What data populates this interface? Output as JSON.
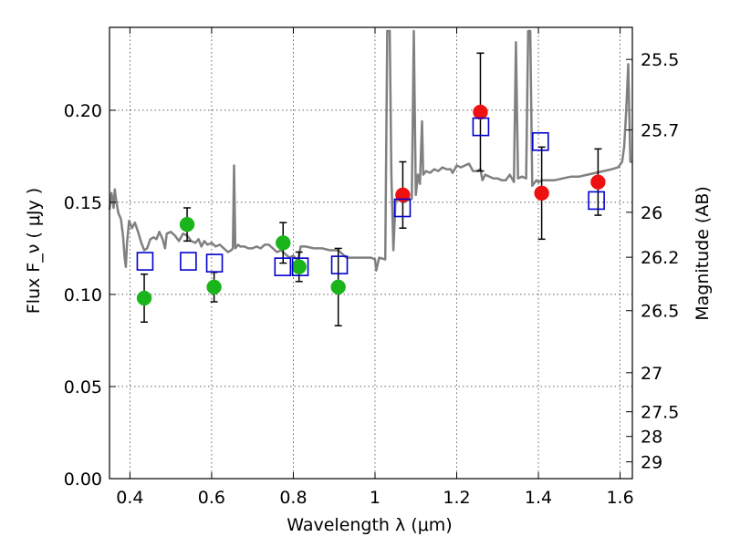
{
  "chart_data": {
    "type": "scatter",
    "xlabel": "Wavelength  λ (μm)",
    "ylabel": "Flux  F_ν  ( μJy )",
    "ylabel_right": "Magnitude (AB)",
    "xlim": [
      0.35,
      1.63
    ],
    "ylim": [
      0.0,
      0.245
    ],
    "grid": true,
    "x_ticks": [
      0.4,
      0.6,
      0.8,
      1.0,
      1.2,
      1.4,
      1.6
    ],
    "x_tick_labels": [
      "0.4",
      "0.6",
      "0.8",
      "1",
      "1.2",
      "1.4",
      "1.6"
    ],
    "y_ticks": [
      0.0,
      0.05,
      0.1,
      0.15,
      0.2
    ],
    "y_tick_labels": [
      "0.00",
      "0.05",
      "0.10",
      "0.15",
      "0.20"
    ],
    "right_ticks": [
      {
        "flux": 0.2276,
        "label": "25.5"
      },
      {
        "flux": 0.1893,
        "label": "25.7"
      },
      {
        "flux": 0.1446,
        "label": "26"
      },
      {
        "flux": 0.1202,
        "label": "26.2"
      },
      {
        "flux": 0.0912,
        "label": "26.5"
      },
      {
        "flux": 0.0575,
        "label": "27"
      },
      {
        "flux": 0.0363,
        "label": "27.5"
      },
      {
        "flux": 0.0229,
        "label": "28"
      },
      {
        "flux": 0.0091,
        "label": "29"
      }
    ],
    "series": [
      {
        "name": "optical photometry",
        "marker": "circle",
        "color": "#1ab51a",
        "points": [
          {
            "x": 0.435,
            "y": 0.098,
            "err": 0.013
          },
          {
            "x": 0.54,
            "y": 0.138,
            "err": 0.009
          },
          {
            "x": 0.606,
            "y": 0.104,
            "err": 0.008
          },
          {
            "x": 0.775,
            "y": 0.128,
            "err": 0.011
          },
          {
            "x": 0.814,
            "y": 0.115,
            "err": 0.008
          },
          {
            "x": 0.91,
            "y": 0.104,
            "err": 0.021
          }
        ]
      },
      {
        "name": "near-IR photometry",
        "marker": "circle",
        "color": "#ee1111",
        "points": [
          {
            "x": 1.068,
            "y": 0.154,
            "err": 0.018
          },
          {
            "x": 1.258,
            "y": 0.199,
            "err": 0.032
          },
          {
            "x": 1.408,
            "y": 0.155,
            "err": 0.025
          },
          {
            "x": 1.546,
            "y": 0.161,
            "err": 0.018
          }
        ]
      },
      {
        "name": "model photometry",
        "marker": "open-square",
        "color": "#0000cc",
        "points": [
          {
            "x": 0.437,
            "y": 0.118
          },
          {
            "x": 0.543,
            "y": 0.118
          },
          {
            "x": 0.607,
            "y": 0.117
          },
          {
            "x": 0.774,
            "y": 0.115
          },
          {
            "x": 0.817,
            "y": 0.115
          },
          {
            "x": 0.913,
            "y": 0.116
          },
          {
            "x": 1.067,
            "y": 0.147
          },
          {
            "x": 1.259,
            "y": 0.191
          },
          {
            "x": 1.405,
            "y": 0.183
          },
          {
            "x": 1.542,
            "y": 0.151
          }
        ]
      },
      {
        "name": "model spectrum",
        "type": "line",
        "color": "#808080",
        "points": [
          [
            0.35,
            0.146
          ],
          [
            0.355,
            0.155
          ],
          [
            0.36,
            0.147
          ],
          [
            0.363,
            0.157
          ],
          [
            0.367,
            0.15
          ],
          [
            0.372,
            0.144
          ],
          [
            0.378,
            0.141
          ],
          [
            0.383,
            0.132
          ],
          [
            0.387,
            0.12
          ],
          [
            0.39,
            0.115
          ],
          [
            0.393,
            0.128
          ],
          [
            0.398,
            0.14
          ],
          [
            0.405,
            0.136
          ],
          [
            0.412,
            0.139
          ],
          [
            0.42,
            0.134
          ],
          [
            0.428,
            0.128
          ],
          [
            0.435,
            0.124
          ],
          [
            0.442,
            0.125
          ],
          [
            0.45,
            0.13
          ],
          [
            0.458,
            0.131
          ],
          [
            0.465,
            0.13
          ],
          [
            0.472,
            0.134
          ],
          [
            0.48,
            0.13
          ],
          [
            0.486,
            0.125
          ],
          [
            0.49,
            0.133
          ],
          [
            0.5,
            0.134
          ],
          [
            0.51,
            0.132
          ],
          [
            0.52,
            0.129
          ],
          [
            0.53,
            0.133
          ],
          [
            0.54,
            0.132
          ],
          [
            0.55,
            0.129
          ],
          [
            0.56,
            0.128
          ],
          [
            0.568,
            0.13
          ],
          [
            0.575,
            0.126
          ],
          [
            0.582,
            0.129
          ],
          [
            0.59,
            0.127
          ],
          [
            0.6,
            0.128
          ],
          [
            0.61,
            0.126
          ],
          [
            0.62,
            0.127
          ],
          [
            0.63,
            0.125
          ],
          [
            0.64,
            0.123
          ],
          [
            0.648,
            0.124
          ],
          [
            0.652,
            0.125
          ],
          [
            0.655,
            0.17
          ],
          [
            0.658,
            0.125
          ],
          [
            0.665,
            0.127
          ],
          [
            0.67,
            0.126
          ],
          [
            0.68,
            0.126
          ],
          [
            0.69,
            0.125
          ],
          [
            0.7,
            0.125
          ],
          [
            0.71,
            0.126
          ],
          [
            0.72,
            0.125
          ],
          [
            0.73,
            0.127
          ],
          [
            0.74,
            0.127
          ],
          [
            0.75,
            0.125
          ],
          [
            0.76,
            0.123
          ],
          [
            0.77,
            0.124
          ],
          [
            0.78,
            0.122
          ],
          [
            0.79,
            0.12
          ],
          [
            0.8,
            0.121
          ],
          [
            0.808,
            0.119
          ],
          [
            0.813,
            0.12
          ],
          [
            0.818,
            0.126
          ],
          [
            0.83,
            0.126
          ],
          [
            0.85,
            0.125
          ],
          [
            0.87,
            0.125
          ],
          [
            0.89,
            0.124
          ],
          [
            0.91,
            0.124
          ],
          [
            0.93,
            0.12
          ],
          [
            0.95,
            0.12
          ],
          [
            0.97,
            0.12
          ],
          [
            0.99,
            0.12
          ],
          [
            1.0,
            0.119
          ],
          [
            1.003,
            0.113
          ],
          [
            1.01,
            0.12
          ],
          [
            1.025,
            0.119
          ],
          [
            1.03,
            0.243
          ],
          [
            1.036,
            0.243
          ],
          [
            1.04,
            0.165
          ],
          [
            1.045,
            0.124
          ],
          [
            1.05,
            0.15
          ],
          [
            1.055,
            0.152
          ],
          [
            1.06,
            0.152
          ],
          [
            1.07,
            0.15
          ],
          [
            1.08,
            0.151
          ],
          [
            1.09,
            0.152
          ],
          [
            1.095,
            0.243
          ],
          [
            1.1,
            0.154
          ],
          [
            1.105,
            0.165
          ],
          [
            1.11,
            0.16
          ],
          [
            1.115,
            0.194
          ],
          [
            1.118,
            0.165
          ],
          [
            1.125,
            0.167
          ],
          [
            1.135,
            0.166
          ],
          [
            1.145,
            0.168
          ],
          [
            1.155,
            0.167
          ],
          [
            1.165,
            0.169
          ],
          [
            1.175,
            0.168
          ],
          [
            1.185,
            0.168
          ],
          [
            1.19,
            0.166
          ],
          [
            1.2,
            0.17
          ],
          [
            1.21,
            0.169
          ],
          [
            1.22,
            0.17
          ],
          [
            1.23,
            0.171
          ],
          [
            1.24,
            0.167
          ],
          [
            1.25,
            0.167
          ],
          [
            1.258,
            0.168
          ],
          [
            1.263,
            0.162
          ],
          [
            1.27,
            0.165
          ],
          [
            1.28,
            0.164
          ],
          [
            1.29,
            0.163
          ],
          [
            1.3,
            0.163
          ],
          [
            1.31,
            0.162
          ],
          [
            1.32,
            0.162
          ],
          [
            1.33,
            0.165
          ],
          [
            1.34,
            0.161
          ],
          [
            1.345,
            0.237
          ],
          [
            1.35,
            0.163
          ],
          [
            1.36,
            0.164
          ],
          [
            1.37,
            0.163
          ],
          [
            1.375,
            0.243
          ],
          [
            1.38,
            0.243
          ],
          [
            1.385,
            0.159
          ],
          [
            1.395,
            0.162
          ],
          [
            1.4,
            0.161
          ],
          [
            1.41,
            0.162
          ],
          [
            1.42,
            0.162
          ],
          [
            1.44,
            0.162
          ],
          [
            1.46,
            0.163
          ],
          [
            1.48,
            0.164
          ],
          [
            1.5,
            0.164
          ],
          [
            1.52,
            0.165
          ],
          [
            1.54,
            0.166
          ],
          [
            1.56,
            0.167
          ],
          [
            1.58,
            0.168
          ],
          [
            1.595,
            0.169
          ],
          [
            1.605,
            0.172
          ],
          [
            1.61,
            0.18
          ],
          [
            1.615,
            0.2
          ],
          [
            1.62,
            0.225
          ],
          [
            1.625,
            0.172
          ],
          [
            1.63,
            0.172
          ]
        ]
      }
    ]
  }
}
